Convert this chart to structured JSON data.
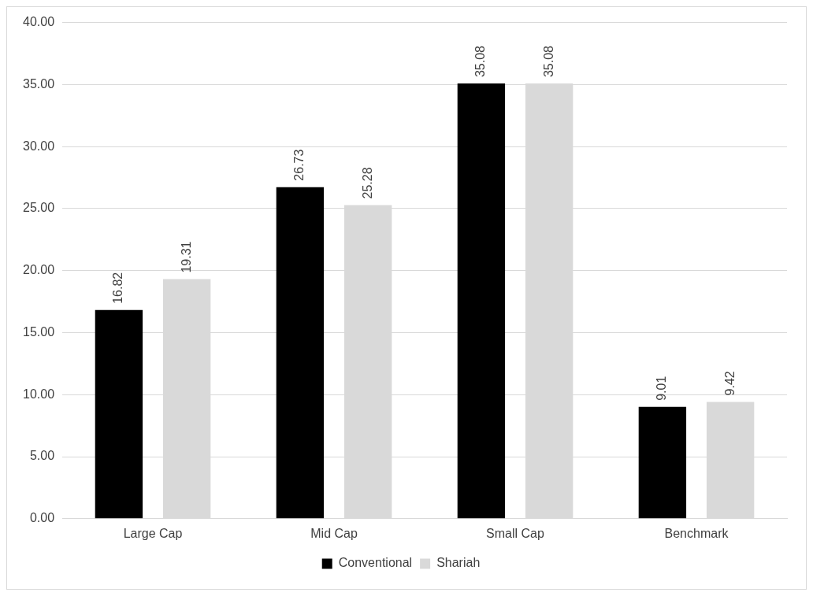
{
  "chart_data": {
    "type": "bar",
    "categories": [
      "Large Cap",
      "Mid Cap",
      "Small Cap",
      "Benchmark"
    ],
    "series": [
      {
        "name": "Conventional",
        "color": "#000000",
        "values": [
          16.82,
          26.73,
          35.08,
          9.01
        ]
      },
      {
        "name": "Shariah",
        "color": "#d9d9d9",
        "values": [
          19.31,
          25.28,
          35.08,
          9.42
        ]
      }
    ],
    "ylim": [
      0,
      40
    ],
    "yticks": [
      {
        "value": 0,
        "label": "0.00"
      },
      {
        "value": 5,
        "label": "5.00"
      },
      {
        "value": 10,
        "label": "10.00"
      },
      {
        "value": 15,
        "label": "15.00"
      },
      {
        "value": 20,
        "label": "20.00"
      },
      {
        "value": 25,
        "label": "25.00"
      },
      {
        "value": 30,
        "label": "30.00"
      },
      {
        "value": 35,
        "label": "35.00"
      },
      {
        "value": 40,
        "label": "40.00"
      }
    ],
    "grid": "y",
    "legend": "bottom",
    "data_labels": true
  }
}
